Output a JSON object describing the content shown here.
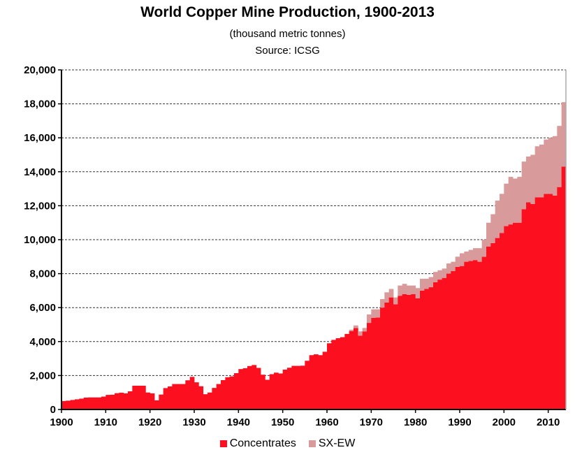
{
  "chart_data": {
    "type": "area",
    "stacked": true,
    "title": "World Copper Mine Production, 1900-2013",
    "subtitle": "(thousand metric tonnes)",
    "source": "Source: ICSG",
    "xlabel": "",
    "ylabel": "",
    "xlim": [
      1900,
      2014
    ],
    "ylim": [
      0,
      20000
    ],
    "x_ticks": [
      "1900",
      "1910",
      "1920",
      "1930",
      "1940",
      "1950",
      "1960",
      "1970",
      "1980",
      "1990",
      "2000",
      "2010"
    ],
    "y_ticks": [
      "0",
      "2,000",
      "4,000",
      "6,000",
      "8,000",
      "10,000",
      "12,000",
      "14,000",
      "16,000",
      "18,000",
      "20,000"
    ],
    "grid": "horizontal dashed",
    "legend": "bottom",
    "start_year": 1900,
    "series": [
      {
        "name": "Concentrates",
        "color": "#FC1020",
        "values": [
          500,
          520,
          560,
          600,
          640,
          700,
          710,
          710,
          710,
          760,
          860,
          870,
          960,
          990,
          950,
          1070,
          1400,
          1400,
          1400,
          1000,
          950,
          540,
          880,
          1260,
          1360,
          1500,
          1500,
          1500,
          1720,
          1920,
          1600,
          1370,
          900,
          1000,
          1270,
          1500,
          1730,
          1900,
          1950,
          2140,
          2380,
          2430,
          2560,
          2620,
          2450,
          2050,
          1750,
          2080,
          2170,
          2120,
          2350,
          2460,
          2570,
          2570,
          2580,
          2870,
          3200,
          3250,
          3200,
          3400,
          3900,
          4100,
          4200,
          4260,
          4450,
          4620,
          4800,
          4350,
          4600,
          5100,
          5400,
          5420,
          6000,
          6300,
          6600,
          6200,
          6700,
          6800,
          6750,
          6800,
          6550,
          7000,
          7100,
          7200,
          7500,
          7650,
          7750,
          8000,
          8150,
          8400,
          8450,
          8700,
          8750,
          8800,
          8700,
          9000,
          9600,
          9800,
          10100,
          10400,
          10800,
          10900,
          11000,
          11000,
          11800,
          12200,
          12100,
          12500,
          12500,
          12700,
          12700,
          12600,
          13100,
          14300
        ]
      },
      {
        "name": "SX-EW",
        "color": "#D89A9A",
        "values": [
          0,
          0,
          0,
          0,
          0,
          0,
          0,
          0,
          0,
          0,
          0,
          0,
          0,
          0,
          0,
          0,
          0,
          0,
          0,
          0,
          0,
          0,
          0,
          0,
          0,
          0,
          0,
          0,
          0,
          0,
          0,
          0,
          0,
          0,
          0,
          0,
          0,
          0,
          0,
          0,
          0,
          0,
          0,
          0,
          0,
          0,
          0,
          0,
          0,
          0,
          0,
          0,
          0,
          0,
          0,
          0,
          0,
          0,
          0,
          0,
          0,
          0,
          0,
          0,
          0,
          80,
          150,
          250,
          200,
          500,
          500,
          480,
          500,
          600,
          500,
          400,
          600,
          600,
          550,
          500,
          600,
          700,
          600,
          600,
          600,
          550,
          550,
          600,
          550,
          600,
          750,
          600,
          650,
          700,
          800,
          1000,
          1400,
          1700,
          2200,
          2300,
          2500,
          2800,
          2600,
          2700,
          2800,
          2700,
          2900,
          3000,
          3100,
          3200,
          3300,
          3500,
          3600,
          3800
        ]
      }
    ]
  }
}
